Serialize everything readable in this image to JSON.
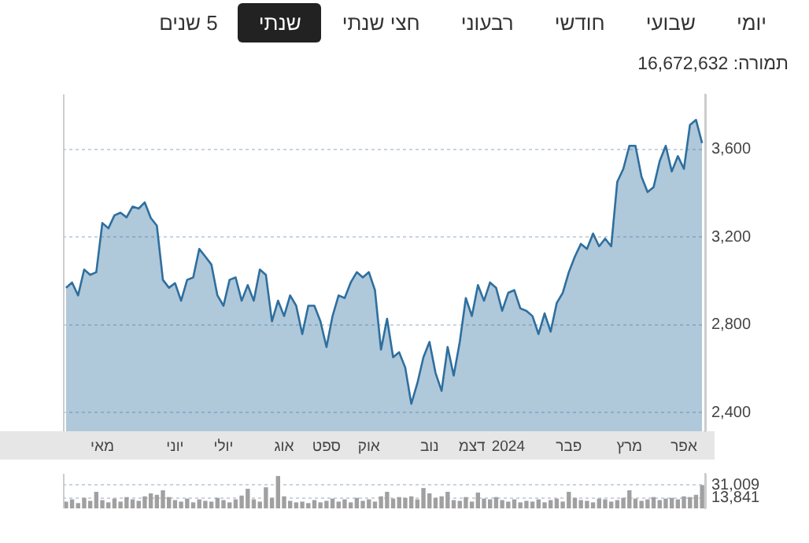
{
  "chart_data": [
    {
      "type": "area",
      "annotations": [
        "יומי",
        "שבועי",
        "חודשי",
        "רבעוני",
        "חצי שנתי",
        "שנתי",
        "5 שנים",
        "תמורה: 16,672,632"
      ],
      "categories": [
        null,
        null,
        null,
        null,
        null,
        null,
        "מאי",
        null,
        null,
        null,
        null,
        null,
        null,
        null,
        null,
        null,
        null,
        null,
        "יוני",
        null,
        null,
        null,
        null,
        null,
        null,
        null,
        "יולי",
        null,
        null,
        null,
        null,
        null,
        null,
        null,
        null,
        null,
        "אוג",
        null,
        null,
        null,
        null,
        null,
        null,
        "ספט",
        null,
        null,
        null,
        null,
        null,
        null,
        "אוק",
        null,
        null,
        null,
        null,
        null,
        null,
        null,
        null,
        null,
        "נוב",
        null,
        null,
        null,
        null,
        null,
        null,
        "דצמ",
        null,
        null,
        null,
        null,
        null,
        "2024",
        null,
        null,
        null,
        null,
        null,
        null,
        null,
        null,
        null,
        "פבר",
        null,
        null,
        null,
        null,
        null,
        null,
        null,
        null,
        null,
        "מרץ",
        null,
        null,
        null,
        null,
        null,
        null,
        null,
        null,
        "אפר",
        null,
        null,
        null
      ],
      "series": [
        {
          "color": "#2e6f9e",
          "values": [
            2969,
            2993,
            2934,
            3052,
            3028,
            3040,
            3264,
            3240,
            3299,
            3311,
            3290,
            3339,
            3330,
            3358,
            3287,
            3252,
            3005,
            2969,
            2990,
            2910,
            3005,
            3016,
            3146,
            3111,
            3075,
            2934,
            2887,
            3005,
            3016,
            2910,
            2981,
            2910,
            3052,
            3028,
            2816,
            2910,
            2840,
            2934,
            2887,
            2758,
            2887,
            2887,
            2816,
            2699,
            2840,
            2934,
            2922,
            2993,
            3040,
            3016,
            3040,
            2958,
            2687,
            2828,
            2652,
            2675,
            2605,
            2440,
            2534,
            2652,
            2722,
            2581,
            2499,
            2699,
            2569,
            2722,
            2922,
            2840,
            2981,
            2910,
            2993,
            2969,
            2864,
            2946,
            2958,
            2875,
            2864,
            2840,
            2758,
            2852,
            2769,
            2899,
            2946,
            3040,
            3111,
            3169,
            3146,
            3216,
            3158,
            3193,
            3158,
            3452,
            3511,
            3616,
            3616,
            3475,
            3405,
            3428,
            3546,
            3616,
            3499,
            3569,
            3511,
            3711,
            3734,
            3628
          ]
        }
      ],
      "ylim": [
        2315,
        3850
      ],
      "yticks": [
        {
          "value": 2400,
          "label": "2,400"
        },
        {
          "value": 2800,
          "label": "2,800"
        },
        {
          "value": 3200,
          "label": "3,200"
        },
        {
          "value": 3600,
          "label": "3,600"
        }
      ],
      "grid": "y"
    },
    {
      "type": "bar",
      "tick_labels": "y",
      "categories": [
        null,
        null,
        null,
        null,
        null,
        null,
        null,
        null,
        null,
        null,
        null,
        null,
        null,
        null,
        null,
        null,
        null,
        null,
        null,
        null,
        null,
        null,
        null,
        null,
        null,
        null,
        null,
        null,
        null,
        null,
        null,
        null,
        null,
        null,
        null,
        null,
        null,
        null,
        null,
        null,
        null,
        null,
        null,
        null,
        null,
        null,
        null,
        null,
        null,
        null,
        null,
        null,
        null,
        null,
        null,
        null,
        null,
        null,
        null,
        null,
        null,
        null,
        null,
        null,
        null,
        null,
        null,
        null,
        null,
        null,
        null,
        null,
        null,
        null,
        null,
        null,
        null,
        null,
        null,
        null,
        null,
        null,
        null,
        null,
        null,
        null,
        null,
        null,
        null,
        null,
        null,
        null,
        null,
        null,
        null,
        null,
        null,
        null,
        null,
        null,
        null,
        null,
        null,
        null,
        null,
        null
      ],
      "series": [
        {
          "color": "#a0a0a0",
          "values": [
            9000,
            12000,
            7000,
            14000,
            10000,
            22000,
            11000,
            8000,
            13000,
            9000,
            15000,
            12000,
            10000,
            16000,
            20000,
            18000,
            24000,
            15000,
            11000,
            9000,
            13000,
            8000,
            12000,
            10000,
            9000,
            14000,
            11000,
            8000,
            12000,
            17000,
            26000,
            12000,
            9000,
            28000,
            14000,
            43000,
            16000,
            10000,
            8000,
            9000,
            7000,
            11000,
            8000,
            10000,
            13000,
            9000,
            12000,
            8000,
            14000,
            10000,
            12000,
            9000,
            16000,
            22000,
            13000,
            15000,
            14000,
            16000,
            12000,
            27000,
            20000,
            14000,
            16000,
            22000,
            11000,
            10000,
            15000,
            9000,
            21000,
            13000,
            12000,
            15000,
            11000,
            9000,
            12000,
            8000,
            10000,
            9000,
            12000,
            8000,
            11000,
            13000,
            9000,
            22000,
            14000,
            11000,
            10000,
            8000,
            13000,
            12000,
            9000,
            11000,
            14000,
            24000,
            13000,
            10000,
            12000,
            15000,
            11000,
            13000,
            14000,
            12000,
            16000,
            15000,
            18000,
            31009
          ]
        }
      ],
      "ylim": [
        0,
        46000
      ],
      "yticks": [
        {
          "value": 13841,
          "label": "13,841"
        },
        {
          "value": 31009,
          "label": "31,009"
        }
      ],
      "grid": "y"
    }
  ]
}
